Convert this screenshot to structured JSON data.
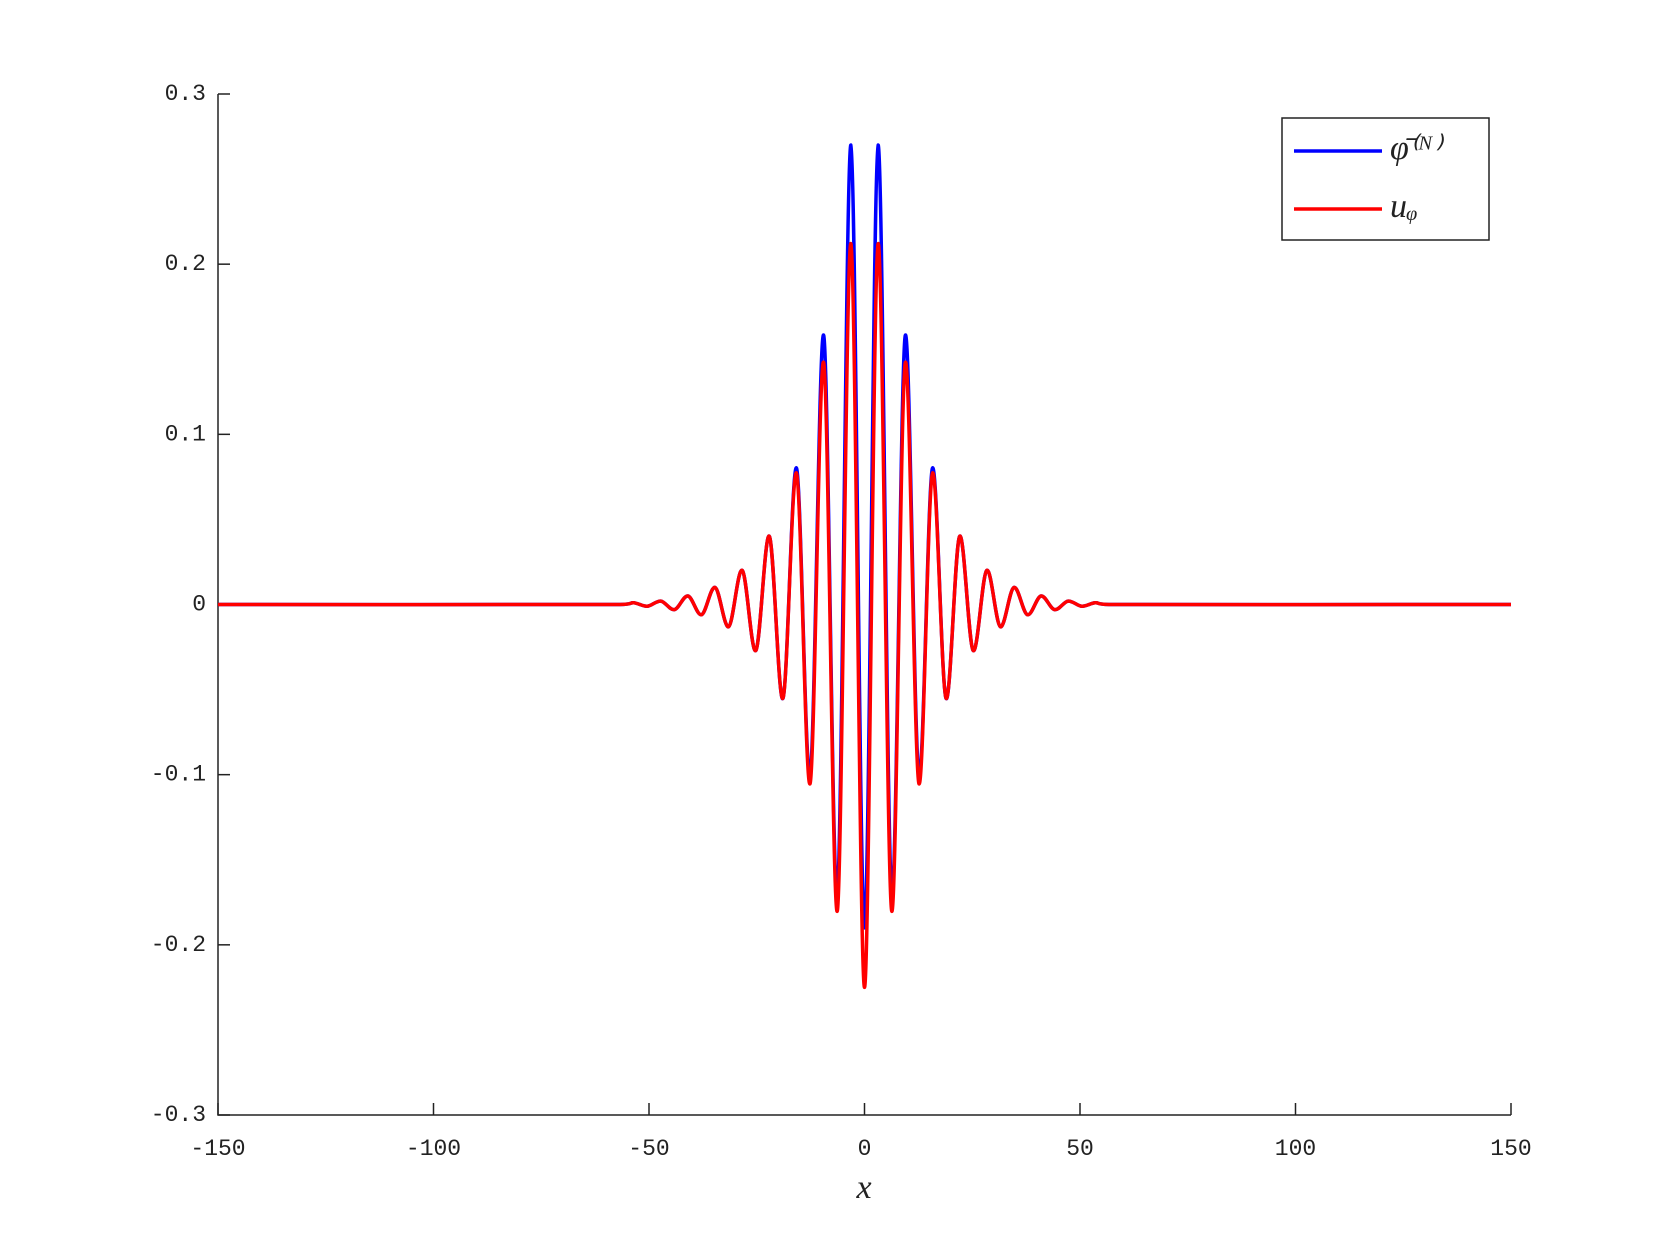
{
  "chart_data": {
    "type": "line",
    "x_label": "x",
    "x": [
      -150,
      -56.7,
      -53.55,
      -50.4,
      -47.25,
      -44.1,
      -40.95,
      -37.8,
      -34.65,
      -31.5,
      -28.35,
      -25.2,
      -22.05,
      -18.9,
      -15.75,
      -12.6,
      -9.45,
      -6.3,
      -3.15,
      0,
      3.15,
      6.3,
      9.45,
      12.6,
      15.75,
      18.9,
      22.05,
      25.2,
      28.35,
      31.5,
      34.65,
      37.8,
      40.95,
      44.1,
      47.25,
      50.4,
      53.55,
      56.7,
      150
    ],
    "series": [
      {
        "name": "φ̄⁽ᴺ⁾",
        "color": "#0000ff",
        "values": [
          0,
          0,
          0.001,
          -0.001,
          0.002,
          -0.003,
          0.005,
          -0.006,
          0.01,
          -0.013,
          0.02,
          -0.027,
          0.04,
          -0.055,
          0.08,
          -0.1,
          0.158,
          -0.17,
          0.27,
          -0.19,
          0.27,
          -0.17,
          0.158,
          -0.1,
          0.08,
          -0.055,
          0.04,
          -0.027,
          0.02,
          -0.013,
          0.01,
          -0.006,
          0.005,
          -0.003,
          0.002,
          -0.001,
          0.001,
          0,
          0
        ]
      },
      {
        "name": "uᵩ",
        "color": "#ff0000",
        "values": [
          0,
          0,
          0.001,
          -0.001,
          0.002,
          -0.003,
          0.005,
          -0.006,
          0.01,
          -0.013,
          0.02,
          -0.027,
          0.04,
          -0.055,
          0.077,
          -0.105,
          0.142,
          -0.18,
          0.212,
          -0.225,
          0.212,
          -0.18,
          0.142,
          -0.105,
          0.077,
          -0.055,
          0.04,
          -0.027,
          0.02,
          -0.013,
          0.01,
          -0.006,
          0.005,
          -0.003,
          0.002,
          -0.001,
          0.001,
          0,
          0
        ]
      }
    ],
    "xlim": [
      -150,
      150
    ],
    "xticks": [
      -150,
      -100,
      -50,
      0,
      50,
      100,
      150
    ],
    "ylim": [
      -0.3,
      0.3
    ],
    "yticks": [
      -0.3,
      -0.2,
      -0.1,
      0,
      0.1,
      0.2,
      0.3
    ],
    "legend": "top-right",
    "grid": false
  }
}
